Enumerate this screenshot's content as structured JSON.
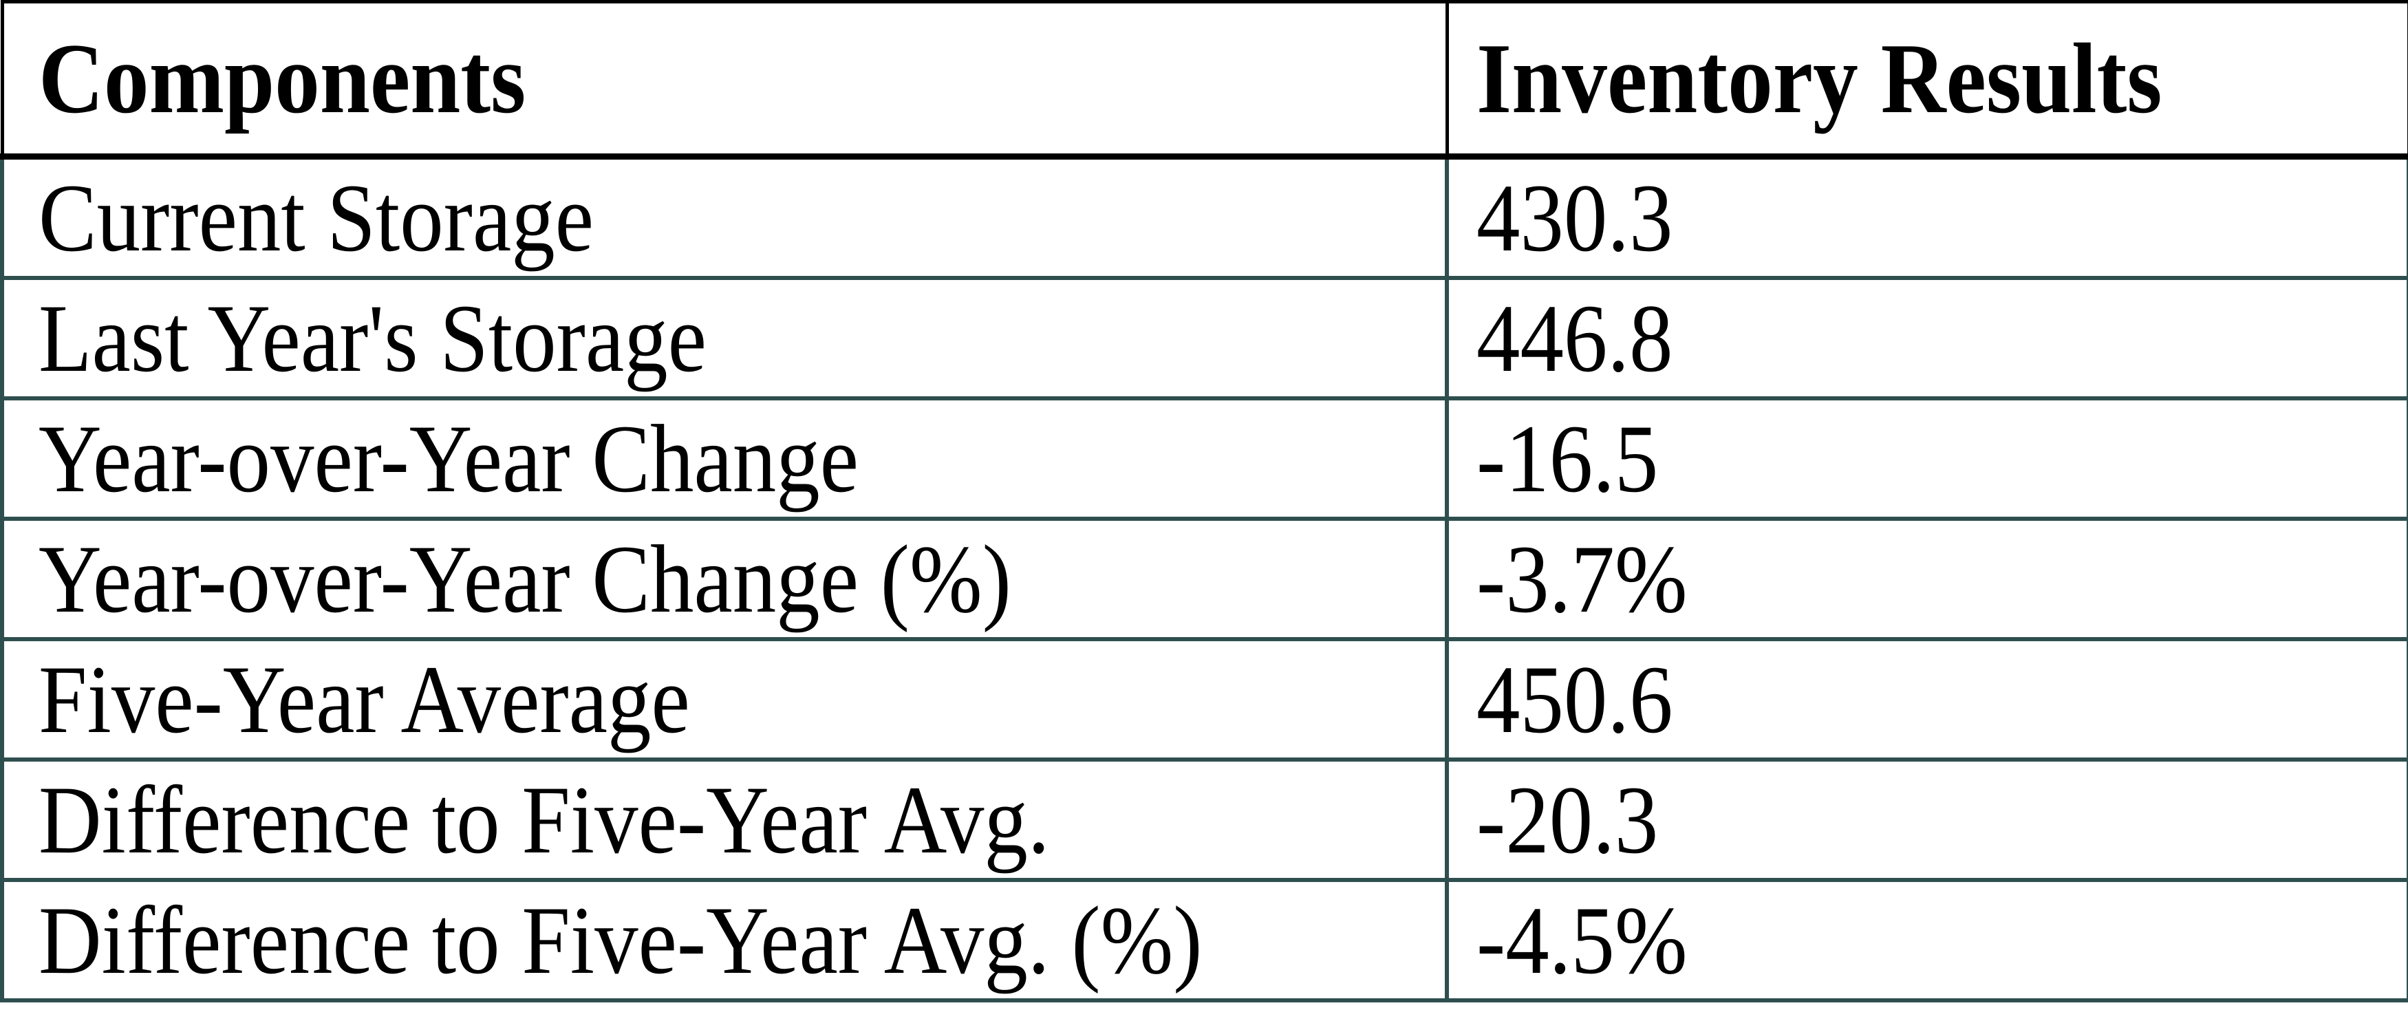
{
  "table": {
    "columns": [
      {
        "label": "Components"
      },
      {
        "label": "Inventory Results"
      }
    ],
    "rows": [
      {
        "label": "Current Storage",
        "value": "430.3"
      },
      {
        "label": "Last Year's Storage",
        "value": "446.8"
      },
      {
        "label": "Year-over-Year Change",
        "value": "-16.5"
      },
      {
        "label": "Year-over-Year Change (%)",
        "value": "-3.7%"
      },
      {
        "label": "Five-Year Average",
        "value": "450.6"
      },
      {
        "label": "Difference to Five-Year Avg.",
        "value": "-20.3"
      },
      {
        "label": "Difference to Five-Year Avg. (%)",
        "value": "-4.5%"
      }
    ],
    "colors": {
      "header_border": "#000000",
      "body_border": "#2F4F4F",
      "text": "#000000",
      "background": "#FFFFFF"
    }
  },
  "chart_data": {
    "type": "table",
    "title": "Inventory Results",
    "columns": [
      "Components",
      "Inventory Results"
    ],
    "categories": [
      "Current Storage",
      "Last Year's Storage",
      "Year-over-Year Change",
      "Year-over-Year Change (%)",
      "Five-Year Average",
      "Difference to Five-Year Avg.",
      "Difference to Five-Year Avg. (%)"
    ],
    "values": [
      430.3,
      446.8,
      -16.5,
      -3.7,
      450.6,
      -20.3,
      -4.5
    ],
    "value_display": [
      "430.3",
      "446.8",
      "-16.5",
      "-3.7%",
      "450.6",
      "-20.3",
      "-4.5%"
    ]
  }
}
